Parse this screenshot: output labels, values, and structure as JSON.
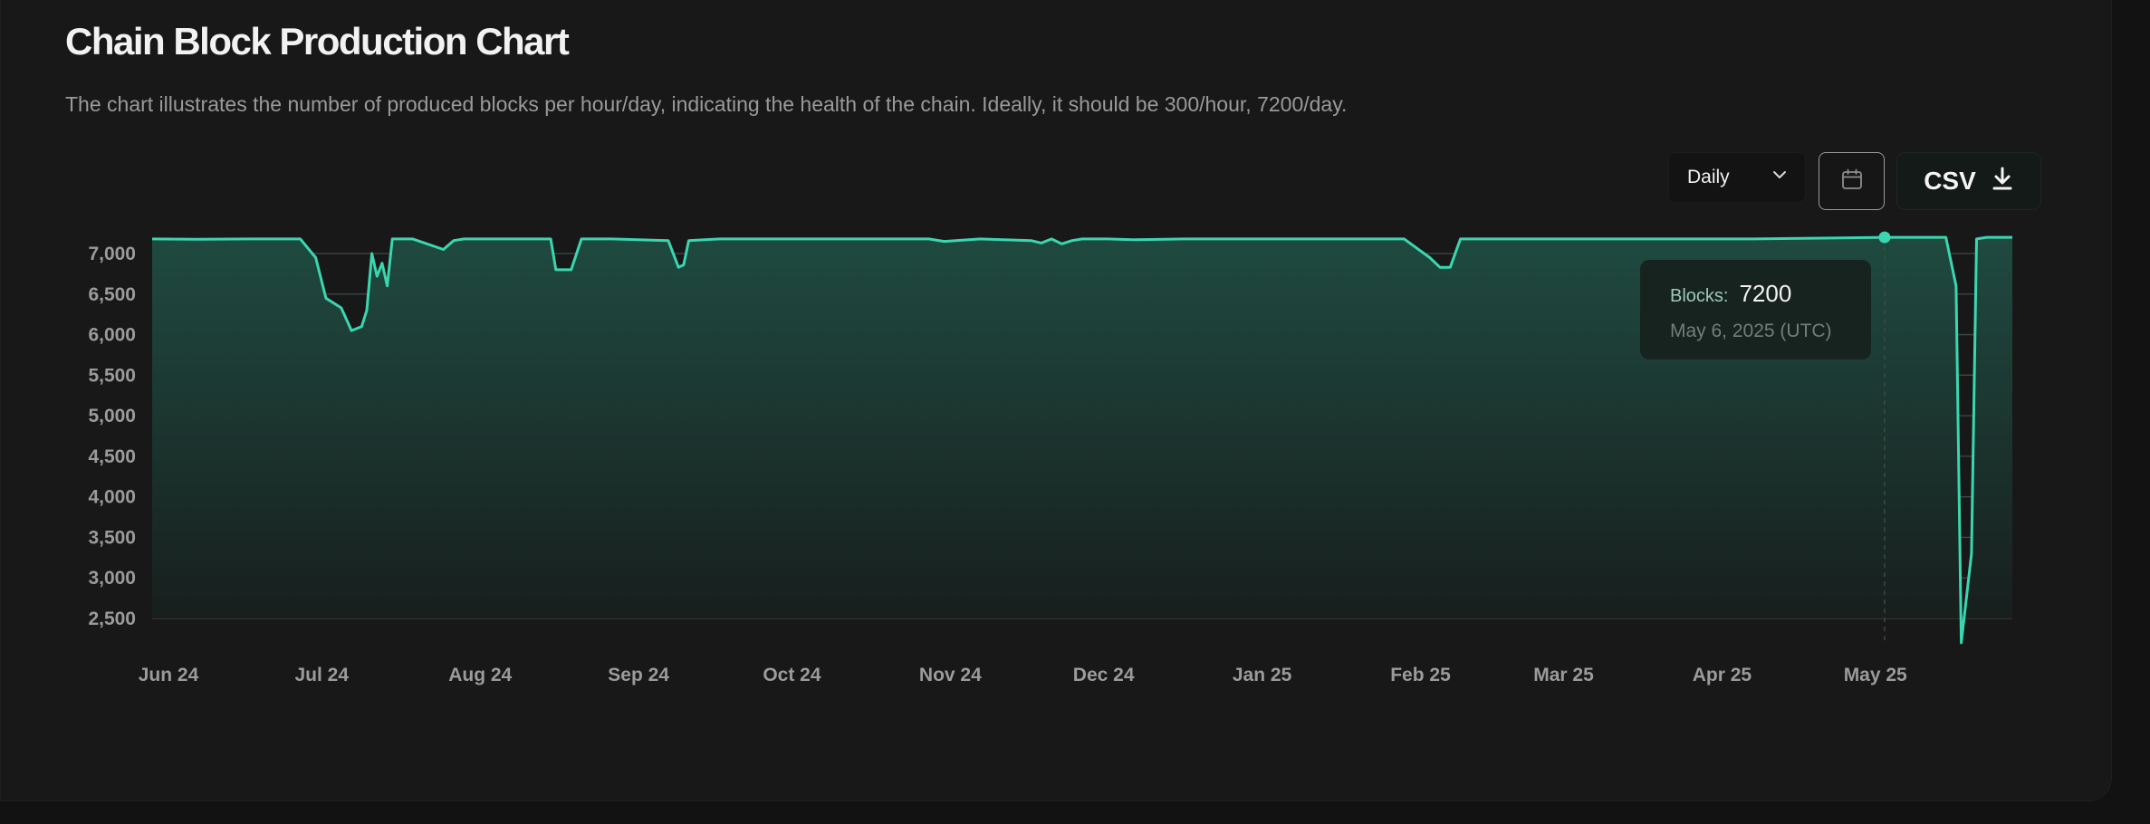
{
  "header": {
    "title": "Chain Block Production Chart",
    "subtitle": "The chart illustrates the number of produced blocks per hour/day, indicating the health of the chain. Ideally, it should be 300/hour, 7200/day."
  },
  "controls": {
    "interval_value": "Daily",
    "csv_label": "CSV"
  },
  "tooltip": {
    "label": "Blocks:",
    "value": "7200",
    "date": "May 6, 2025 (UTC)"
  },
  "colors": {
    "line": "#3ad6b0",
    "area_top": "#1f4a40",
    "area_bottom": "#171c1b",
    "grid": "#3e4a47"
  },
  "chart_data": {
    "type": "area",
    "title": "Chain Block Production Chart",
    "xlabel": "",
    "ylabel": "",
    "ylim": [
      2200,
      7200
    ],
    "yticks": [
      7000,
      6500,
      6000,
      5500,
      5000,
      4500,
      4000,
      3500,
      3000,
      2500
    ],
    "ytick_labels": [
      "7,000",
      "6,500",
      "6,000",
      "5,500",
      "5,000",
      "4,500",
      "4,000",
      "3,500",
      "3,000",
      "2,500"
    ],
    "xticks": [
      "Jun 24",
      "Jul 24",
      "Aug 24",
      "Sep 24",
      "Oct 24",
      "Nov 24",
      "Dec 24",
      "Jan 25",
      "Feb 25",
      "Mar 25",
      "Apr 25",
      "May 25"
    ],
    "xlim": [
      "2024-06-01",
      "2025-05-31"
    ],
    "grid": true,
    "legend": "none",
    "highlight": {
      "x": "2025-05-06",
      "y": 7200
    },
    "series": [
      {
        "name": "Blocks",
        "x": [
          "2024-06-01",
          "2024-06-10",
          "2024-06-20",
          "2024-06-30",
          "2024-07-03",
          "2024-07-05",
          "2024-07-08",
          "2024-07-10",
          "2024-07-12",
          "2024-07-13",
          "2024-07-14",
          "2024-07-15",
          "2024-07-16",
          "2024-07-17",
          "2024-07-18",
          "2024-07-19",
          "2024-07-20",
          "2024-07-22",
          "2024-07-28",
          "2024-07-30",
          "2024-08-01",
          "2024-08-10",
          "2024-08-18",
          "2024-08-19",
          "2024-08-22",
          "2024-08-24",
          "2024-08-30",
          "2024-09-10",
          "2024-09-12",
          "2024-09-13",
          "2024-09-14",
          "2024-09-20",
          "2024-09-30",
          "2024-10-15",
          "2024-10-31",
          "2024-11-03",
          "2024-11-10",
          "2024-11-20",
          "2024-11-22",
          "2024-11-24",
          "2024-11-26",
          "2024-11-28",
          "2024-11-30",
          "2024-12-05",
          "2024-12-10",
          "2024-12-20",
          "2025-01-10",
          "2025-02-01",
          "2025-02-06",
          "2025-02-08",
          "2025-02-10",
          "2025-02-12",
          "2025-02-14",
          "2025-02-20",
          "2025-03-15",
          "2025-04-10",
          "2025-05-06",
          "2025-05-18",
          "2025-05-20",
          "2025-05-21",
          "2025-05-23",
          "2025-05-24",
          "2025-05-26",
          "2025-05-31"
        ],
        "values": [
          7180,
          7175,
          7180,
          7180,
          6950,
          6450,
          6330,
          6050,
          6100,
          6300,
          7000,
          6720,
          6880,
          6600,
          7180,
          7180,
          7180,
          7180,
          7050,
          7160,
          7180,
          7180,
          7180,
          6800,
          6800,
          7180,
          7180,
          7160,
          6830,
          6860,
          7160,
          7180,
          7180,
          7180,
          7180,
          7150,
          7180,
          7160,
          7130,
          7180,
          7120,
          7160,
          7180,
          7180,
          7170,
          7180,
          7180,
          7180,
          6950,
          6830,
          6830,
          7180,
          7180,
          7180,
          7180,
          7180,
          7200,
          7200,
          6600,
          2200,
          3300,
          7180,
          7200,
          7200
        ]
      }
    ]
  }
}
